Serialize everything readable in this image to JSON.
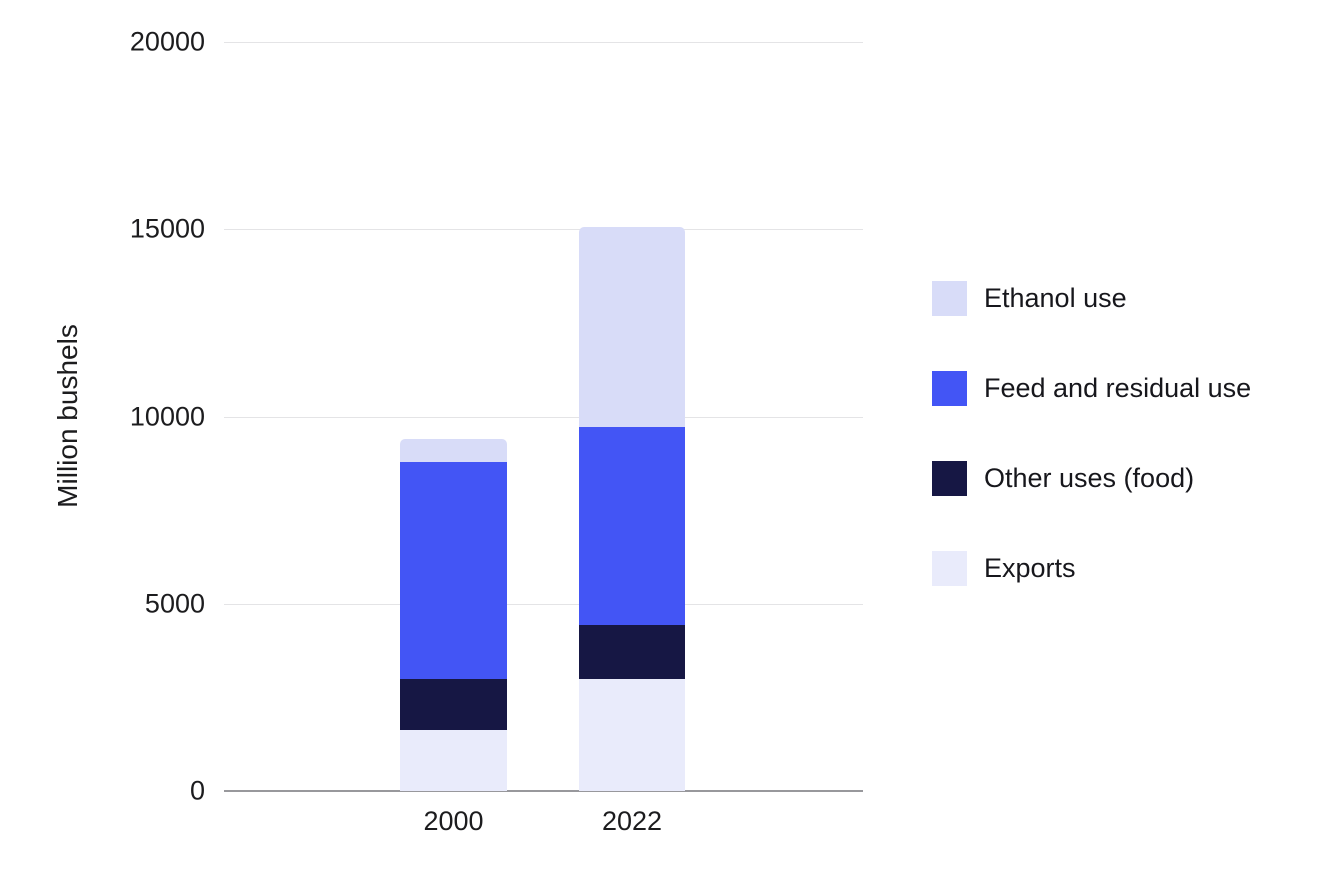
{
  "chart_data": {
    "type": "bar",
    "stacked": true,
    "title": "",
    "xlabel": "",
    "ylabel": "Million bushels",
    "ylim": [
      0,
      20000
    ],
    "yticks": [
      0,
      5000,
      10000,
      15000,
      20000
    ],
    "grid": "horizontal",
    "legend_position": "right",
    "categories": [
      "2000",
      "2022"
    ],
    "series": [
      {
        "name": "Ethanol use",
        "color": "#d8dcf8",
        "values": [
          630,
          5360
        ]
      },
      {
        "name": "Feed and residual use",
        "color": "#4355f5",
        "values": [
          5790,
          5280
        ]
      },
      {
        "name": "Other uses (food)",
        "color": "#161744",
        "values": [
          1360,
          1440
        ]
      },
      {
        "name": "Exports",
        "color": "#e9ebfb",
        "values": [
          1630,
          2990
        ]
      }
    ],
    "stack_order_bottom_to_top": [
      "Exports",
      "Other uses (food)",
      "Feed and residual use",
      "Ethanol use"
    ],
    "totals": [
      9410,
      15070
    ],
    "colors": {
      "gridline": "#e4e4e6",
      "baseline": "#98989c",
      "axis_text": "#1c1c1e",
      "background": "#ffffff"
    }
  }
}
